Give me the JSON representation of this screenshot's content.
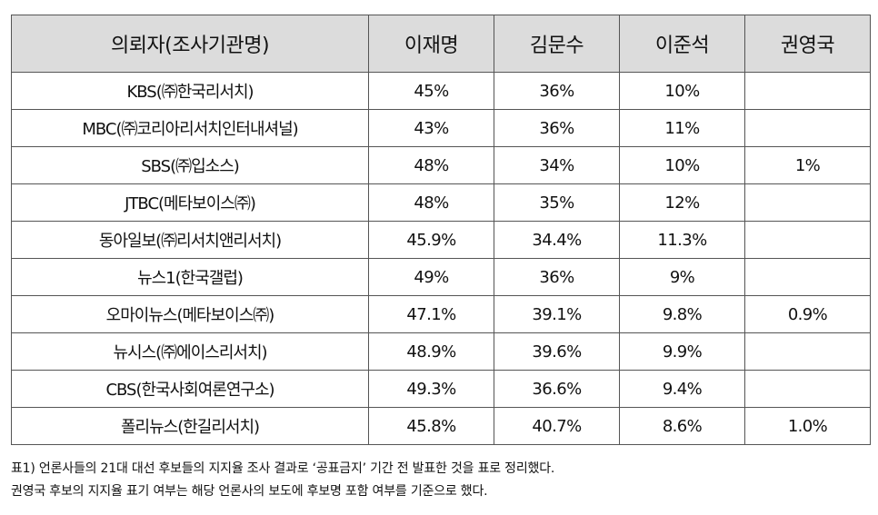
{
  "table": {
    "headers": [
      "의뢰자(조사기관명)",
      "이재명",
      "김문수",
      "이준석",
      "권영국"
    ],
    "rows": [
      [
        "KBS(㈜한국리서치)",
        "45%",
        "36%",
        "10%",
        ""
      ],
      [
        "MBC(㈜코리아리서치인터내셔널)",
        "43%",
        "36%",
        "11%",
        ""
      ],
      [
        "SBS(㈜입소스)",
        "48%",
        "34%",
        "10%",
        "1%"
      ],
      [
        "JTBC(메타보이스㈜)",
        "48%",
        "35%",
        "12%",
        ""
      ],
      [
        "동아일보(㈜리서치앤리서치)",
        "45.9%",
        "34.4%",
        "11.3%",
        ""
      ],
      [
        "뉴스1(한국갤럽)",
        "49%",
        "36%",
        "9%",
        ""
      ],
      [
        "오마이뉴스(메타보이스㈜)",
        "47.1%",
        "39.1%",
        "9.8%",
        "0.9%"
      ],
      [
        "뉴시스(㈜에이스리서치)",
        "48.9%",
        "39.6%",
        "9.9%",
        ""
      ],
      [
        "CBS(한국사회여론연구소)",
        "49.3%",
        "36.6%",
        "9.4%",
        ""
      ],
      [
        "폴리뉴스(한길리서치)",
        "45.8%",
        "40.7%",
        "8.6%",
        "1.0%"
      ]
    ]
  },
  "caption": {
    "line1": "표1) 언론사들의 21대 대선 후보들의 지지율 조사 결과로 ‘공표금지’ 기간 전 발표한 것을 표로 정리했다.",
    "line2": "권영국 후보의 지지율 표기 여부는 해당 언론사의 보도에 후보명 포함 여부를 기준으로 했다."
  }
}
